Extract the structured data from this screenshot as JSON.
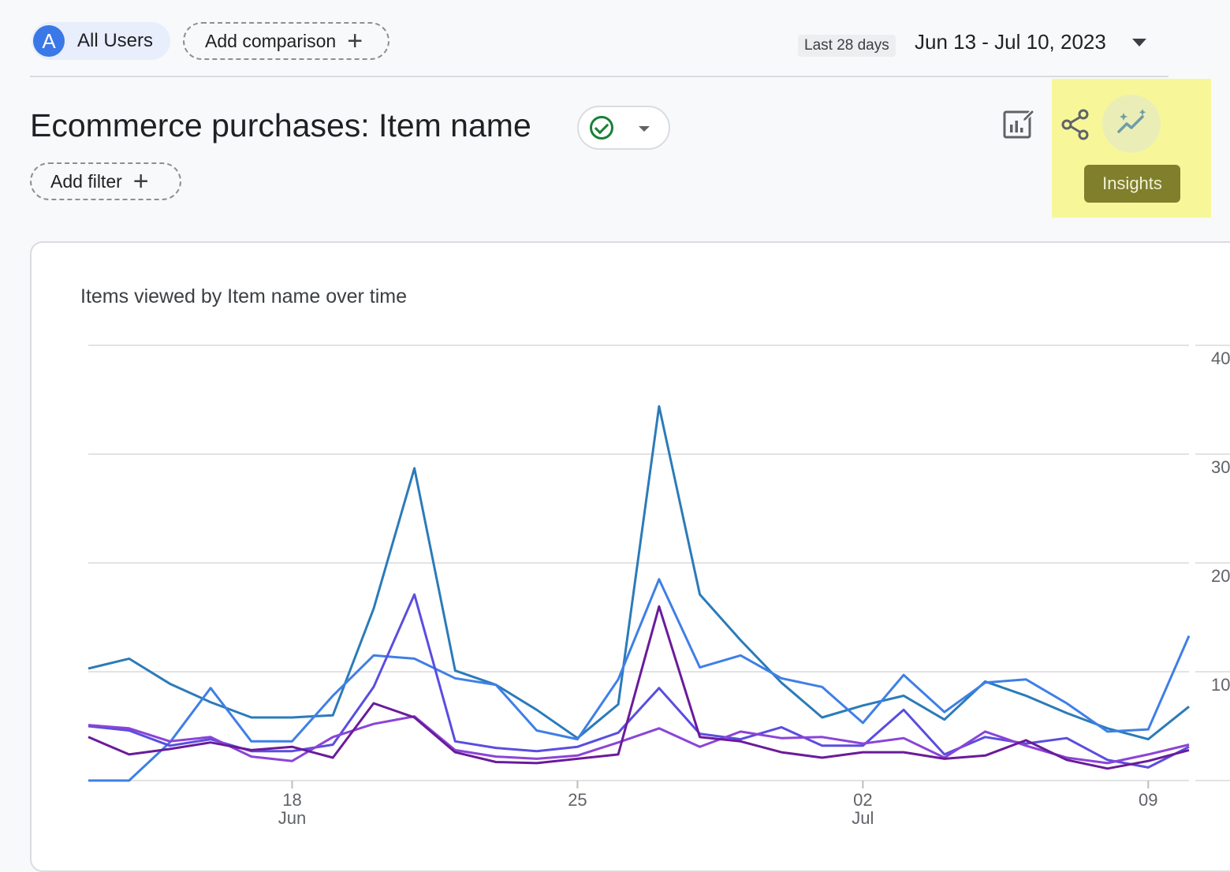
{
  "top_bar": {
    "segment_avatar_letter": "A",
    "segment_label": "All Users",
    "add_comparison_label": "Add comparison",
    "date_badge": "Last 28 days",
    "date_range": "Jun 13 - Jul 10, 2023"
  },
  "header": {
    "title": "Ecommerce purchases: Item name",
    "add_filter_label": "Add filter",
    "tooltip": "Insights"
  },
  "icons": {
    "customize": "customize-report-icon",
    "share": "share-icon",
    "insights": "insights-sparkle-icon",
    "status": "check-circle-icon"
  },
  "colors": {
    "highlight": "#f7f79a",
    "series": [
      "#2b7bb9",
      "#3f7fe6",
      "#5a4de0",
      "#8b44d6",
      "#6a1b9a"
    ]
  },
  "chart_data": {
    "type": "line",
    "title": "Items viewed by Item name over time",
    "x": [
      "Jun 13",
      "Jun 14",
      "Jun 15",
      "Jun 16",
      "Jun 17",
      "Jun 18",
      "Jun 19",
      "Jun 20",
      "Jun 21",
      "Jun 22",
      "Jun 23",
      "Jun 24",
      "Jun 25",
      "Jun 26",
      "Jun 27",
      "Jun 28",
      "Jun 29",
      "Jun 30",
      "Jul 01",
      "Jul 02",
      "Jul 03",
      "Jul 04",
      "Jul 05",
      "Jul 06",
      "Jul 07",
      "Jul 08",
      "Jul 09",
      "Jul 10"
    ],
    "x_tick_labels": [
      {
        "index": 5,
        "label": "18",
        "sub": "Jun"
      },
      {
        "index": 12,
        "label": "25",
        "sub": ""
      },
      {
        "index": 19,
        "label": "02",
        "sub": "Jul"
      },
      {
        "index": 26,
        "label": "09",
        "sub": ""
      }
    ],
    "y_ticks": [
      "40",
      "30",
      "20",
      "10"
    ],
    "ylim": [
      0,
      40
    ],
    "grid": true,
    "series": [
      {
        "values": [
          10.3,
          11.2,
          8.9,
          7.2,
          5.8,
          5.8,
          6.0,
          15.8,
          28.7,
          10.1,
          8.8,
          6.5,
          3.9,
          7.0,
          34.4,
          17.1,
          12.9,
          9.0,
          5.8,
          6.9,
          7.8,
          5.6,
          9.1,
          7.8,
          6.2,
          4.8,
          3.8,
          6.8
        ]
      },
      {
        "values": [
          0.0,
          0.0,
          3.5,
          8.5,
          3.6,
          3.6,
          7.8,
          11.5,
          11.2,
          9.4,
          8.8,
          4.6,
          3.8,
          9.3,
          18.5,
          10.4,
          11.5,
          9.4,
          8.6,
          5.3,
          9.7,
          6.3,
          9.0,
          9.3,
          7.1,
          4.5,
          4.7,
          13.3
        ]
      },
      {
        "values": [
          5.0,
          4.6,
          3.2,
          3.8,
          2.7,
          2.7,
          3.3,
          8.6,
          17.1,
          3.6,
          3.0,
          2.7,
          3.1,
          4.4,
          8.5,
          4.3,
          3.8,
          4.9,
          3.2,
          3.2,
          6.5,
          2.4,
          4.0,
          3.4,
          3.9,
          1.9,
          1.2,
          3.1
        ]
      },
      {
        "values": [
          5.1,
          4.8,
          3.6,
          4.0,
          2.2,
          1.8,
          4.0,
          5.2,
          5.9,
          2.8,
          2.2,
          2.0,
          2.3,
          3.5,
          4.8,
          3.1,
          4.5,
          3.9,
          4.0,
          3.4,
          3.9,
          2.1,
          4.5,
          3.2,
          2.1,
          1.6,
          2.4,
          3.3
        ]
      },
      {
        "values": [
          4.0,
          2.4,
          2.9,
          3.5,
          2.8,
          3.1,
          2.1,
          7.1,
          5.8,
          2.6,
          1.7,
          1.6,
          2.0,
          2.4,
          16.0,
          4.0,
          3.6,
          2.6,
          2.1,
          2.6,
          2.6,
          2.0,
          2.3,
          3.7,
          1.9,
          1.1,
          1.8,
          2.8
        ]
      }
    ]
  }
}
